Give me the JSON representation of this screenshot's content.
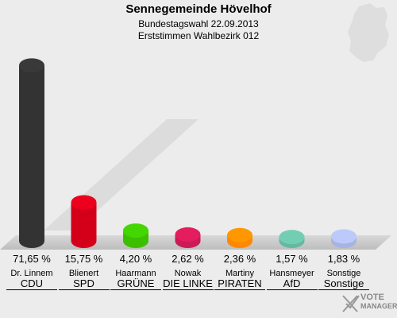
{
  "header": {
    "title": "Sennegemeinde Hövelhof",
    "subtitle": "Bundestagswahl 22.09.2013",
    "subtitle2": "Erststimmen Wahlbezirk 012"
  },
  "chart_data": {
    "type": "bar",
    "categories": [
      "CDU",
      "SPD",
      "GRÜNE",
      "DIE LINKE",
      "PIRATEN",
      "AfD",
      "Sonstige"
    ],
    "candidates": [
      "Dr. Linnem",
      "Blienert",
      "Haarmann",
      "Nowak",
      "Martiny",
      "Hansmeyer",
      "Sonstige"
    ],
    "values": [
      71.65,
      15.75,
      4.2,
      2.62,
      2.36,
      1.57,
      1.83
    ],
    "value_labels": [
      "71,65 %",
      "15,75 %",
      "4,20 %",
      "2,62 %",
      "2,36 %",
      "1,57 %",
      "1,83 %"
    ],
    "colors": [
      "#333333",
      "#d4001a",
      "#3cbf00",
      "#cc1a55",
      "#ff8800",
      "#66b8a0",
      "#a8b4e0"
    ],
    "ylim": [
      0,
      75
    ]
  },
  "logo": {
    "line1": "VOTE",
    "line2": "MANAGER"
  }
}
